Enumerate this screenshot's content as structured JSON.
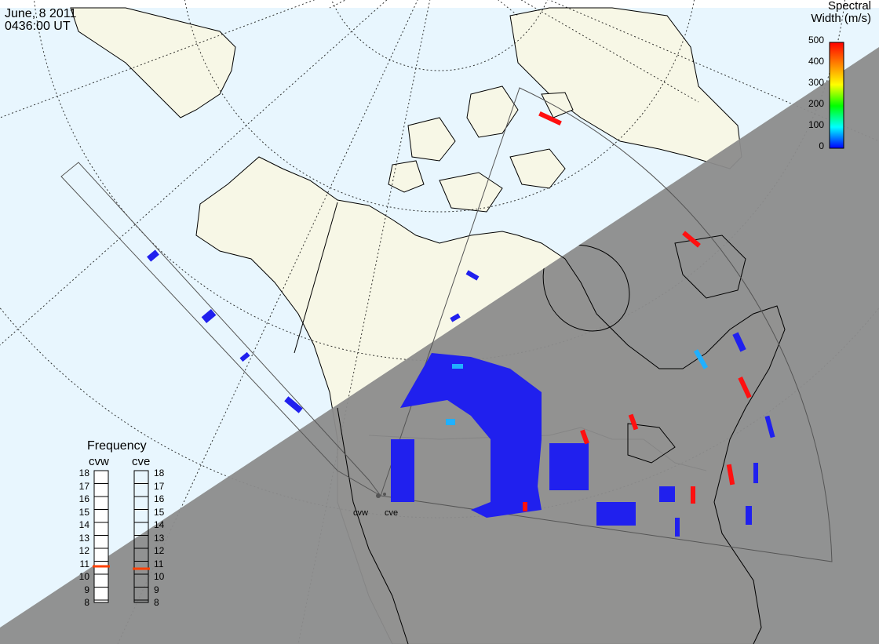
{
  "header": {
    "date": "June, 8 2011",
    "time": "0436:00 UT"
  },
  "colorbar": {
    "title_line1": "Spectral",
    "title_line2": "Width (m/s)",
    "ticks": [
      "500",
      "400",
      "300",
      "200",
      "100",
      "0"
    ],
    "gradient": [
      "#0000ff",
      "#00ffff",
      "#00ff00",
      "#ffff00",
      "#ff8000",
      "#ff0000"
    ]
  },
  "frequency_panel": {
    "title": "Frequency",
    "radars": [
      {
        "name": "cvw",
        "selected": "11"
      },
      {
        "name": "cve",
        "selected": "11"
      }
    ],
    "scale": [
      "18",
      "17",
      "16",
      "15",
      "14",
      "13",
      "12",
      "11",
      "10",
      "9",
      "8"
    ],
    "marker_color": "#ff4000"
  },
  "sites": [
    {
      "name": "cvw"
    },
    {
      "name": "cve"
    }
  ],
  "colors": {
    "ocean": "#e8f6fe",
    "land": "#f7f7e6",
    "night": "#8c8c8c",
    "scatter": "#2020ee",
    "high_width": "#ff1010",
    "mid_width": "#20b0ff"
  }
}
